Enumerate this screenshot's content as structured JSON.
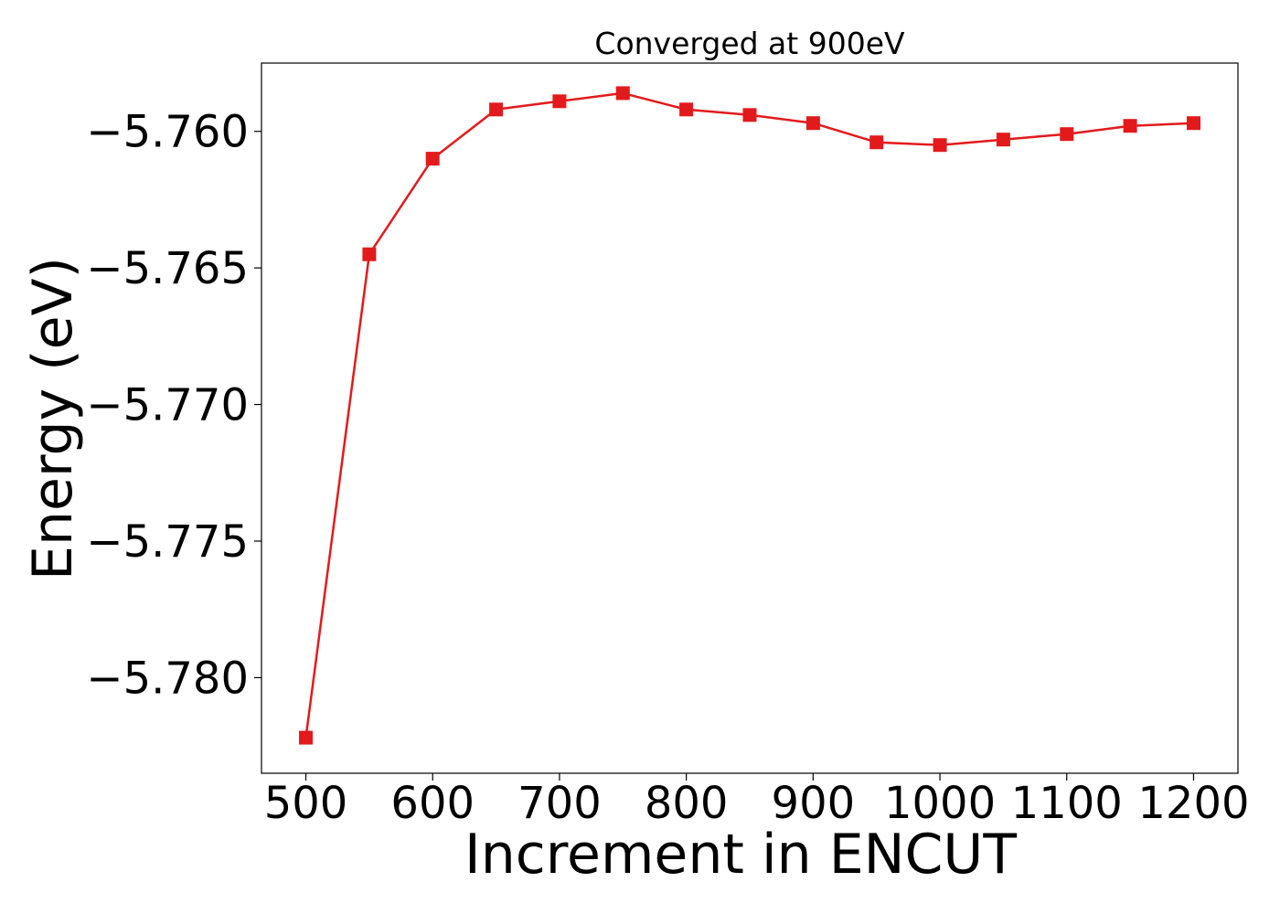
{
  "chart_data": {
    "type": "line",
    "title": "Converged at 900eV",
    "xlabel": "Increment in ENCUT",
    "ylabel": "Energy (eV)",
    "x": [
      500,
      550,
      600,
      650,
      700,
      750,
      800,
      850,
      900,
      950,
      1000,
      1050,
      1100,
      1150,
      1200
    ],
    "series": [
      {
        "values": [
          -5.7822,
          -5.7645,
          -5.761,
          -5.7592,
          -5.7589,
          -5.7586,
          -5.7592,
          -5.7594,
          -5.7597,
          -5.7604,
          -5.7605,
          -5.7603,
          -5.7601,
          -5.7598,
          -5.7597
        ],
        "color": "#e31a1c",
        "marker": "square"
      }
    ],
    "xticks": [
      500,
      600,
      700,
      800,
      900,
      1000,
      1100,
      1200
    ],
    "xtick_labels": [
      "500",
      "600",
      "700",
      "800",
      "900",
      "1000",
      "1100",
      "1200"
    ],
    "yticks": [
      -5.76,
      -5.765,
      -5.77,
      -5.775,
      -5.78
    ],
    "ytick_labels": [
      "−5.760",
      "−5.765",
      "−5.770",
      "−5.775",
      "−5.780"
    ],
    "xlim": [
      465,
      1235
    ],
    "ylim": [
      -5.7835,
      -5.7575
    ],
    "grid": false,
    "legend": "none"
  }
}
